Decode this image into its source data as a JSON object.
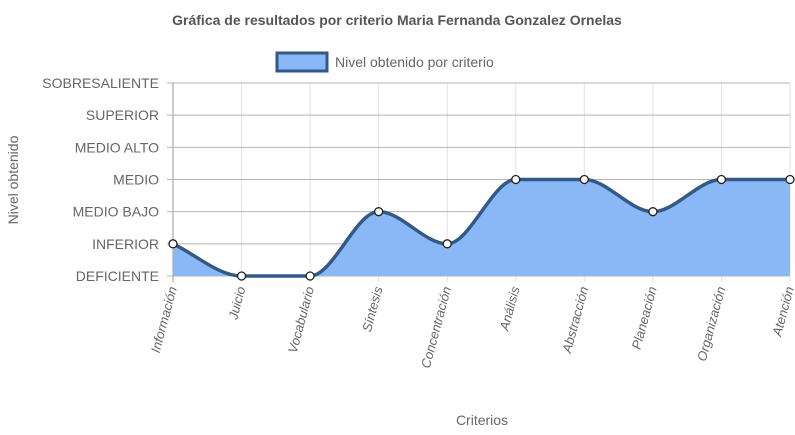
{
  "chart_data": {
    "type": "area",
    "title": "Gráfica de resultados por criterio Maria Fernanda Gonzalez Ornelas",
    "xlabel": "Criterios",
    "ylabel": "Nivel obtenido",
    "categories": [
      "Información",
      "Juicio",
      "Vocabulario",
      "Síntesis",
      "Concentración",
      "Análisis",
      "Abstracción",
      "Planeación",
      "Organización",
      "Atención"
    ],
    "y_levels": [
      "DEFICIENTE",
      "INFERIOR",
      "MEDIO BAJO",
      "MEDIO",
      "MEDIO ALTO",
      "SUPERIOR",
      "SOBRESALIENTE"
    ],
    "ylim": [
      0,
      6
    ],
    "series": [
      {
        "name": "Nivel obtenido por criterio",
        "values": [
          1,
          0,
          0,
          2,
          1,
          3,
          3,
          2,
          3,
          3
        ],
        "fill_color": "#8ab8f7",
        "line_color": "#2f5a8c"
      }
    ],
    "grid": true,
    "legend_position": "top"
  }
}
